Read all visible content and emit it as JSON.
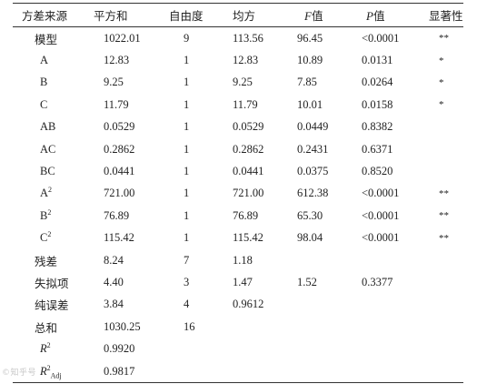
{
  "headers": [
    {
      "text": "方差来源"
    },
    {
      "text": "平方和"
    },
    {
      "text": "自由度"
    },
    {
      "text": "均方"
    },
    {
      "italic": "F",
      "text": "值"
    },
    {
      "italic": "P",
      "text": "值"
    },
    {
      "text": "显著性"
    }
  ],
  "rows": [
    {
      "source": "模型",
      "ss": "1022.01",
      "df": "9",
      "ms": "113.56",
      "f": "96.45",
      "p": "<0.0001",
      "sig": "**"
    },
    {
      "source": "A",
      "ss": "12.83",
      "df": "1",
      "ms": "12.83",
      "f": "10.89",
      "p": "0.0131",
      "sig": "*"
    },
    {
      "source": "B",
      "ss": "9.25",
      "df": "1",
      "ms": "9.25",
      "f": "7.85",
      "p": "0.0264",
      "sig": "*"
    },
    {
      "source": "C",
      "ss": "11.79",
      "df": "1",
      "ms": "11.79",
      "f": "10.01",
      "p": "0.0158",
      "sig": "*"
    },
    {
      "source": "AB",
      "ss": "0.0529",
      "df": "1",
      "ms": "0.0529",
      "f": "0.0449",
      "p": "0.8382",
      "sig": ""
    },
    {
      "source": "AC",
      "ss": "0.2862",
      "df": "1",
      "ms": "0.2862",
      "f": "0.2431",
      "p": "0.6371",
      "sig": ""
    },
    {
      "source": "BC",
      "ss": "0.0441",
      "df": "1",
      "ms": "0.0441",
      "f": "0.0375",
      "p": "0.8520",
      "sig": ""
    },
    {
      "source": "A",
      "source_sup": "2",
      "ss": "721.00",
      "df": "1",
      "ms": "721.00",
      "f": "612.38",
      "p": "<0.0001",
      "sig": "**"
    },
    {
      "source": "B",
      "source_sup": "2",
      "ss": "76.89",
      "df": "1",
      "ms": "76.89",
      "f": "65.30",
      "p": "<0.0001",
      "sig": "**"
    },
    {
      "source": "C",
      "source_sup": "2",
      "ss": "115.42",
      "df": "1",
      "ms": "115.42",
      "f": "98.04",
      "p": "<0.0001",
      "sig": "**"
    },
    {
      "source": "残差",
      "ss": "8.24",
      "df": "7",
      "ms": "1.18",
      "f": "",
      "p": "",
      "sig": ""
    },
    {
      "source": "失拟项",
      "ss": "4.40",
      "df": "3",
      "ms": "1.47",
      "f": "1.52",
      "p": "0.3377",
      "sig": ""
    },
    {
      "source": "纯误差",
      "ss": "3.84",
      "df": "4",
      "ms": "0.9612",
      "f": "",
      "p": "",
      "sig": ""
    },
    {
      "source": "总和",
      "ss": "1030.25",
      "df": "16",
      "ms": "",
      "f": "",
      "p": "",
      "sig": ""
    },
    {
      "source_italic": "R",
      "source_sup": "2",
      "ss": "0.9920",
      "df": "",
      "ms": "",
      "f": "",
      "p": "",
      "sig": ""
    },
    {
      "source_italic": "R",
      "source_sup": "2",
      "source_sub": "Adj",
      "ss": "0.9817",
      "df": "",
      "ms": "",
      "f": "",
      "p": "",
      "sig": ""
    }
  ],
  "watermark": "©知乎号"
}
